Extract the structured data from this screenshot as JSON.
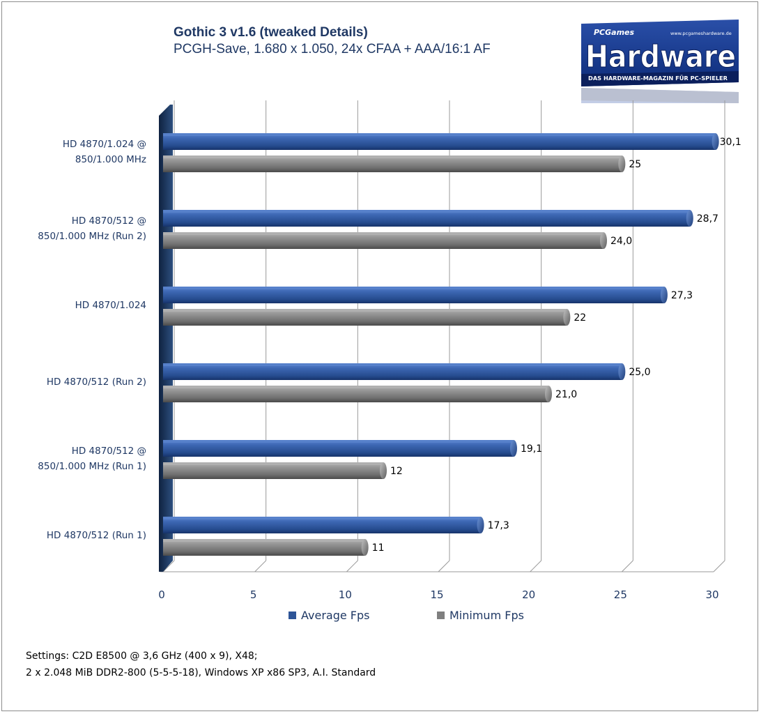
{
  "chart_data": {
    "type": "bar",
    "orientation": "horizontal",
    "title": "Gothic 3 v1.6 (tweaked Details)",
    "subtitle": "PCGH-Save, 1.680 x 1.050, 24x CFAA + AAA/16:1 AF",
    "categories": [
      [
        "HD 4870/1.024 @",
        "850/1.000 MHz"
      ],
      [
        "HD 4870/512 @",
        "850/1.000 MHz (Run 2)"
      ],
      [
        "HD 4870/1.024"
      ],
      [
        "HD 4870/512 (Run 2)"
      ],
      [
        "HD 4870/512 @",
        "850/1.000 MHz (Run 1)"
      ],
      [
        "HD 4870/512 (Run 1)"
      ]
    ],
    "series": [
      {
        "name": "Average Fps",
        "color": "#2e5597",
        "values": [
          30.1,
          28.7,
          27.3,
          25.0,
          19.1,
          17.3
        ],
        "labels": [
          "30,1",
          "28,7",
          "27,3",
          "25,0",
          "19,1",
          "17,3"
        ]
      },
      {
        "name": "Minimum Fps",
        "color": "#7f7f7f",
        "values": [
          25,
          24.0,
          22,
          21.0,
          12,
          11
        ],
        "labels": [
          "25",
          "24,0",
          "22",
          "21,0",
          "12",
          "11"
        ]
      }
    ],
    "xlim": [
      0,
      30
    ],
    "xticks": [
      "0",
      "5",
      "10",
      "15",
      "20",
      "25",
      "30"
    ],
    "grid": true,
    "legend_position": "bottom"
  },
  "logo": {
    "top_text": "PCGames",
    "main_text": "Hardware",
    "url_text": "www.pcgameshardware.de",
    "tagline": "DAS HARDWARE-MAGAZIN FÜR PC-SPIELER"
  },
  "settings": [
    "Settings: C2D E8500 @ 3,6 GHz (400 x 9), X48;",
    "2 x 2.048 MiB DDR2-800 (5-5-5-18), Windows XP x86 SP3, A.I. Standard"
  ]
}
